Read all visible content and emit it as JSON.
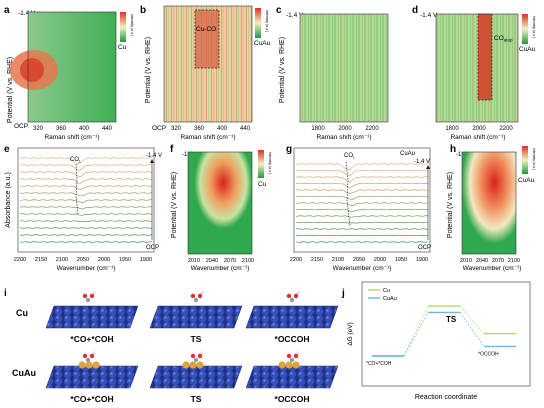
{
  "panel_letters": [
    "a",
    "b",
    "c",
    "d",
    "e",
    "f",
    "g",
    "h",
    "i",
    "j"
  ],
  "axis_text": {
    "potential": "Potential (V vs. RHE)",
    "raman_shift": "Raman shift (cm⁻¹)",
    "wavenumber": "Wavenumber (cm⁻¹)",
    "absorbance": "Absorbance (a.u.)",
    "intensity": "Intensity (a.u.)",
    "minus14": "-1.4 V",
    "ocp": "OCP",
    "minus14b": "-1.4"
  },
  "colorbar_labels": {
    "a": "Cu",
    "b": "CuAu",
    "d": "CuAu",
    "f": "Cu",
    "h": "CuAu"
  },
  "raman_ticks_low": [
    "320",
    "360",
    "400",
    "440"
  ],
  "raman_ticks_high": [
    "1800",
    "2000",
    "2200"
  ],
  "ir_ticks": [
    "2200",
    "2150",
    "2100",
    "2050",
    "2000",
    "1950",
    "1900"
  ],
  "ir_map_ticks": [
    "2010",
    "2040",
    "2070",
    "2100"
  ],
  "annotations": {
    "cu_co": "Cu-CO",
    "co_atop": "CO",
    "co_atop_sub": "atop",
    "co_l": "CO",
    "co_l_sub": "L",
    "e_label": "-1.4 V",
    "e_ocp": "OCP",
    "g_top": "CuAu",
    "g_label": "-1.4 V",
    "g_ocp": "OCP"
  },
  "panel_i": {
    "rows": [
      {
        "label": "Cu",
        "states": [
          "*CO+*COH",
          "TS",
          "*OCCOH"
        ]
      },
      {
        "label": "CuAu",
        "states": [
          "*CO+*COH",
          "TS",
          "*OCCOH"
        ]
      }
    ]
  },
  "chart_data": {
    "type": "line",
    "title": "",
    "xlabel": "Reaction coordinate",
    "ylabel": "ΔG (eV)",
    "categories": [
      "*CO+*COH",
      "TS",
      "*OCCOH"
    ],
    "series": [
      {
        "name": "Cu",
        "values": [
          0.0,
          0.78,
          0.35
        ],
        "color": "#b7d65a"
      },
      {
        "name": "CuAu",
        "values": [
          0.0,
          0.68,
          0.15
        ],
        "color": "#6fb6e6"
      }
    ],
    "ylim": [
      0,
      1
    ]
  },
  "colors": {
    "cu": "#b7d65a",
    "cuau": "#6fb6e6",
    "au_atom": "#e0a23a",
    "cu_atom": "#2b3f95"
  }
}
